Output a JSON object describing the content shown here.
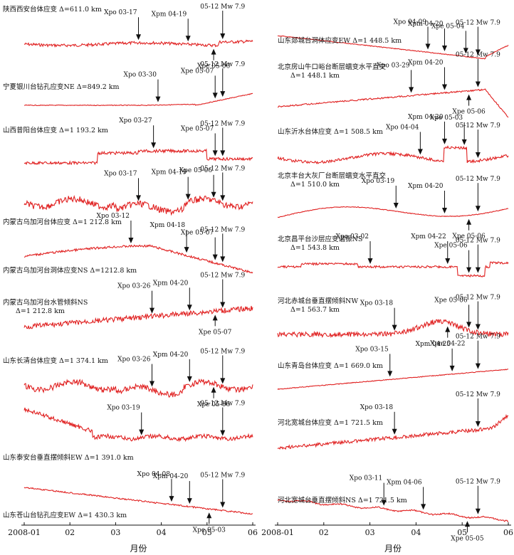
{
  "chart_data": [
    {
      "type": "line",
      "panel": "left",
      "xlabel": "月份",
      "x_ticks": [
        "2008-01",
        "02",
        "03",
        "04",
        "05",
        "06"
      ],
      "xlim": [
        "2008-01-01",
        "2008-06-01"
      ],
      "line_color": "#e02020",
      "traces": [
        {
          "label": "陕西西安台体应变 Δ=611.0 km",
          "markers": [
            {
              "text": "Xpo 03-17",
              "date": "2008-03-17",
              "pos": "down"
            },
            {
              "text": "Xpm 04-19",
              "date": "2008-04-19",
              "pos": "down"
            },
            {
              "text": "Xpe 05-06",
              "date": "2008-05-06",
              "pos": "up"
            },
            {
              "text": "05-12 Mw 7.9",
              "date": "2008-05-12",
              "pos": "down"
            }
          ]
        },
        {
          "label": "宁夏银川台钻孔应变NE Δ=849.2 km",
          "markers": [
            {
              "text": "Xpo 03-30",
              "date": "2008-03-30",
              "pos": "down"
            },
            {
              "text": "Xpe 05-07",
              "date": "2008-05-07",
              "pos": "down"
            },
            {
              "text": "05-12 Mw 7.9",
              "date": "2008-05-12",
              "pos": "down"
            }
          ]
        },
        {
          "label": "山西昔阳台体应变 Δ=1 193.2 km",
          "markers": [
            {
              "text": "Xpo 03-27",
              "date": "2008-03-27",
              "pos": "down"
            },
            {
              "text": "Xpe 05-07",
              "date": "2008-05-07",
              "pos": "down"
            },
            {
              "text": "05-12 Mw 7.9",
              "date": "2008-05-12",
              "pos": "down"
            }
          ]
        },
        {
          "label": "内蒙古乌加河台体应变 Δ=1 212.8 km",
          "markers": [
            {
              "text": "Xpo 03-17",
              "date": "2008-03-17",
              "pos": "down"
            },
            {
              "text": "Xpm 04-19",
              "date": "2008-04-19",
              "pos": "down"
            },
            {
              "text": "Xpe 05-06",
              "date": "2008-05-06",
              "pos": "down"
            },
            {
              "text": "05-12 Mw 7.9",
              "date": "2008-05-12",
              "pos": "down"
            }
          ]
        },
        {
          "label": "内蒙古乌加河台洞体应变NS Δ=1212.8 km",
          "markers": [
            {
              "text": "Xpo 03-12",
              "date": "2008-03-12",
              "pos": "down"
            },
            {
              "text": "Xpm 04-18",
              "date": "2008-04-18",
              "pos": "down"
            },
            {
              "text": "Xpe 05-07",
              "date": "2008-05-07",
              "pos": "down"
            },
            {
              "text": "05-12 Mw 7.9",
              "date": "2008-05-12",
              "pos": "down"
            }
          ]
        },
        {
          "label": "内蒙古乌加河台水管倾斜NS Δ=1 212.8 km",
          "markers": [
            {
              "text": "Xpo 03-26",
              "date": "2008-03-26",
              "pos": "down"
            },
            {
              "text": "Xpm 04-20",
              "date": "2008-04-20",
              "pos": "down"
            },
            {
              "text": "Xpe 05-07",
              "date": "2008-05-07",
              "pos": "up"
            },
            {
              "text": "05-12 Mw 7.9",
              "date": "2008-05-12",
              "pos": "down"
            }
          ]
        },
        {
          "label": "山东长清台体应变 Δ=1 374.1 km",
          "markers": [
            {
              "text": "Xpo 03-26",
              "date": "2008-03-26",
              "pos": "down"
            },
            {
              "text": "Xpm 04-20",
              "date": "2008-04-20",
              "pos": "down"
            },
            {
              "text": "Xpe 05-06",
              "date": "2008-05-06",
              "pos": "up"
            },
            {
              "text": "05-12 Mw 7.9",
              "date": "2008-05-12",
              "pos": "down"
            }
          ]
        },
        {
          "label": "山东泰安台垂直摆倾斜EW Δ=1 391.0 km",
          "markers": [
            {
              "text": "Xpo 03-19",
              "date": "2008-03-19",
              "pos": "down"
            },
            {
              "text": "05-12 Mw 7.9",
              "date": "2008-05-12",
              "pos": "down"
            }
          ]
        },
        {
          "label": "山东苍山台钻孔应变EW Δ=1 430.3 km",
          "markers": [
            {
              "text": "Xpo 04-08",
              "date": "2008-04-08",
              "pos": "down"
            },
            {
              "text": "Xpm 04-20",
              "date": "2008-04-20",
              "pos": "down"
            },
            {
              "text": "Xpe 05-03",
              "date": "2008-05-03",
              "pos": "up"
            },
            {
              "text": "05-12 Mw 7.9",
              "date": "2008-05-12",
              "pos": "down"
            }
          ]
        }
      ]
    },
    {
      "type": "line",
      "panel": "right",
      "xlabel": "月份",
      "x_ticks": [
        "2008-01",
        "02",
        "03",
        "04",
        "05",
        "06"
      ],
      "xlim": [
        "2008-01-01",
        "2008-06-01"
      ],
      "line_color": "#e02020",
      "traces": [
        {
          "label": "山东郯城台洞体应变EW Δ=1 448.5 km",
          "markers": [
            {
              "text": "Xpo 04-09",
              "date": "2008-04-09",
              "pos": "down"
            },
            {
              "text": "Xpm 04-20",
              "date": "2008-04-20",
              "pos": "down"
            },
            {
              "text": "Xpe 05-04",
              "date": "2008-05-04",
              "pos": "down"
            },
            {
              "text": "05-12 Mw 7.9",
              "date": "2008-05-12",
              "pos": "down"
            }
          ]
        },
        {
          "label": "北京房山牛口峪台断层蠕变水平直交 Δ=1 448.1 km",
          "markers": [
            {
              "text": "Xpo 03-29",
              "date": "2008-03-29",
              "pos": "down"
            },
            {
              "text": "Xpm 04-20",
              "date": "2008-04-20",
              "pos": "down"
            },
            {
              "text": "Xpe 05-06",
              "date": "2008-05-06",
              "pos": "up"
            },
            {
              "text": "05-12 Mw 7.9",
              "date": "2008-05-12",
              "pos": "down"
            }
          ]
        },
        {
          "label": "山东沂水台体应变 Δ=1 508.5 km",
          "markers": [
            {
              "text": "Xpo 04-04",
              "date": "2008-04-04",
              "pos": "down"
            },
            {
              "text": "Xpm 04-20",
              "date": "2008-04-20",
              "pos": "down"
            },
            {
              "text": "Xpe 05-03",
              "date": "2008-05-03",
              "pos": "down"
            },
            {
              "text": "05-12 Mw 7.9",
              "date": "2008-05-12",
              "pos": "down"
            }
          ]
        },
        {
          "label": "北京丰台大灰厂台断层蠕变水平直交 Δ=1 510.0 km",
          "markers": [
            {
              "text": "Xpo 03-19",
              "date": "2008-03-19",
              "pos": "down"
            },
            {
              "text": "Xpm 04-20",
              "date": "2008-04-20",
              "pos": "down"
            },
            {
              "text": "Xpe 05-06",
              "date": "2008-05-06",
              "pos": "up"
            },
            {
              "text": "05-12 Mw 7.9",
              "date": "2008-05-12",
              "pos": "down"
            }
          ]
        },
        {
          "label": "北京昌平台沙层应变谐振NS Δ=1 543.8 km",
          "markers": [
            {
              "text": "Xpo 03-02",
              "date": "2008-03-02",
              "pos": "down"
            },
            {
              "text": "Xpm 04-22",
              "date": "2008-04-22",
              "pos": "down"
            },
            {
              "text": "Xpe 05-06",
              "date": "2008-05-06",
              "pos": "down"
            },
            {
              "text": "05-12 Mw 7.9",
              "date": "2008-05-12",
              "pos": "down"
            }
          ]
        },
        {
          "label": "河北赤城台垂直摆倾斜NW Δ=1 563.7 km",
          "markers": [
            {
              "text": "Xpo 03-18",
              "date": "2008-03-18",
              "pos": "down"
            },
            {
              "text": "Xpm 04-22",
              "date": "2008-04-22",
              "pos": "up"
            },
            {
              "text": "Xpe 05-06",
              "date": "2008-05-06",
              "pos": "down"
            },
            {
              "text": "05-12 Mw 7.9",
              "date": "2008-05-12",
              "pos": "down"
            }
          ]
        },
        {
          "label": "山东青岛台体应变 Δ=1 669.0 km",
          "markers": [
            {
              "text": "Xpo 03-15",
              "date": "2008-03-15",
              "pos": "down"
            },
            {
              "text": "Xpm 04-25",
              "date": "2008-04-25",
              "pos": "down"
            },
            {
              "text": "05-12 Mw 7.9",
              "date": "2008-05-12",
              "pos": "down"
            }
          ]
        },
        {
          "label": "河北宽城台体应变 Δ=1 721.5 km",
          "markers": [
            {
              "text": "Xpo 03-18",
              "date": "2008-03-18",
              "pos": "down"
            },
            {
              "text": "05-12 Mw 7.9",
              "date": "2008-05-12",
              "pos": "down"
            }
          ]
        },
        {
          "label": "河北宽城台垂直摆倾斜NS Δ=1 721.5 km",
          "markers": [
            {
              "text": "Xpo 03-11",
              "date": "2008-03-11",
              "pos": "down"
            },
            {
              "text": "Xpm 04-06",
              "date": "2008-04-06",
              "pos": "down"
            },
            {
              "text": "Xpe 05-05",
              "date": "2008-05-05",
              "pos": "up"
            },
            {
              "text": "05-12 Mw 7.9",
              "date": "2008-05-12",
              "pos": "down"
            }
          ]
        }
      ]
    }
  ]
}
